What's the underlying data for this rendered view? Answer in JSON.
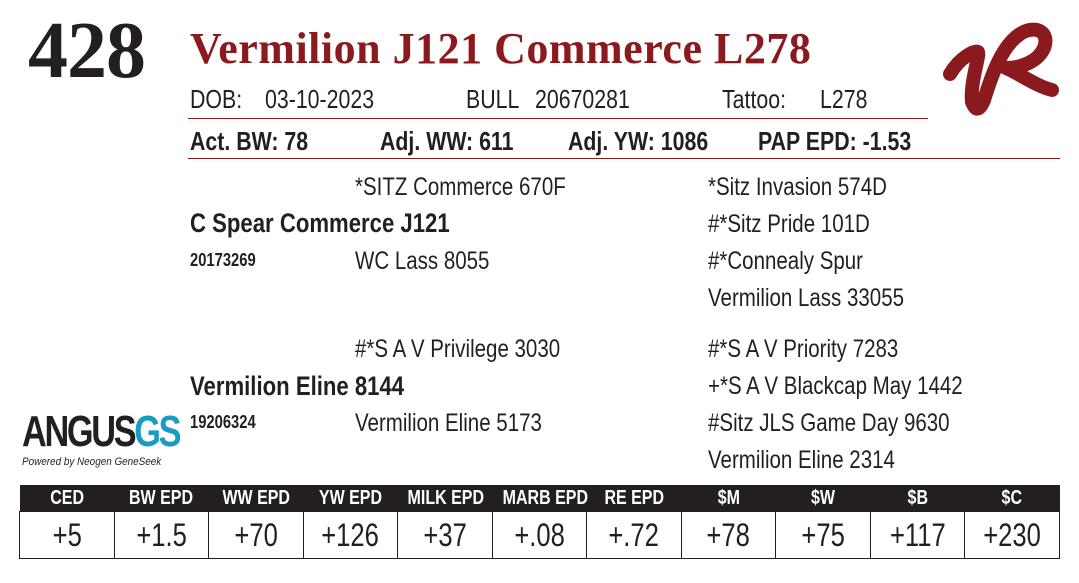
{
  "header": {
    "lot_number": "428",
    "animal_name": "Vermilion J121 Commerce L278"
  },
  "info_row": {
    "dob_label": "DOB:",
    "dob_value": "03-10-2023",
    "sex": "BULL",
    "registration": "20670281",
    "tattoo_label": "Tattoo:",
    "tattoo_value": "L278"
  },
  "performance": {
    "act_bw": "Act. BW: 78",
    "adj_ww": "Adj. WW: 611",
    "adj_yw": "Adj. YW: 1086",
    "pap_epd": "PAP EPD: -1.53"
  },
  "pedigree": {
    "sire": {
      "name": "C Spear Commerce J121",
      "reg": "20173269"
    },
    "sire_sire": "*SITZ Commerce 670F",
    "sire_dam": "WC Lass 8055",
    "sire_sire_sire": "*Sitz Invasion 574D",
    "sire_sire_dam": "#*Sitz Pride 101D",
    "sire_dam_sire": "#*Connealy Spur",
    "sire_dam_dam": "Vermilion Lass 33055",
    "dam": {
      "name": "Vermilion Eline 8144",
      "reg": "19206324"
    },
    "dam_sire": "#*S A V Privilege 3030",
    "dam_dam": "Vermilion Eline 5173",
    "dam_sire_sire": "#*S A V Priority 7283",
    "dam_sire_dam": "+*S A V Blackcap May 1442",
    "dam_dam_sire": "#Sitz JLS Game Day 9630",
    "dam_dam_dam": "Vermilion Eline 2314"
  },
  "logos": {
    "angus_word": "ANGUS",
    "angus_gs": "GS",
    "angus_tagline": "Powered by Neogen GeneSeek",
    "brand_icon": "vermilion-vr-brand",
    "brand_color": "#8b1a1f"
  },
  "epd_table": {
    "headers": [
      "CED",
      "BW EPD",
      "WW EPD",
      "YW EPD",
      "MILK EPD",
      "MARB EPD",
      "RE EPD",
      "$M",
      "$W",
      "$B",
      "$C"
    ],
    "values": [
      "+5",
      "+1.5",
      "+70",
      "+126",
      "+37",
      "+.08",
      "+.72",
      "+78",
      "+75",
      "+117",
      "+230"
    ]
  }
}
